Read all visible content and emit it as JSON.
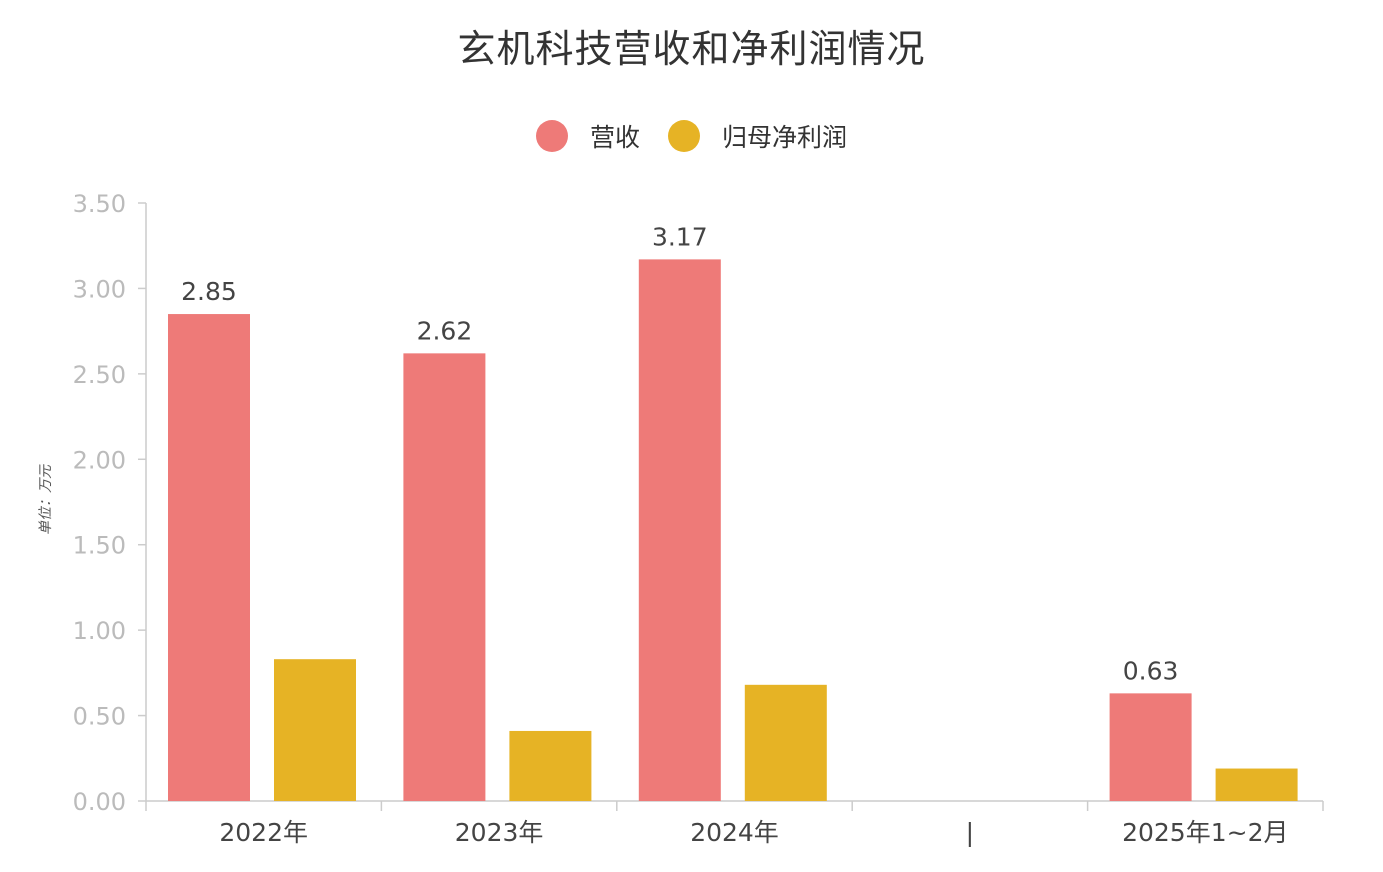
{
  "chart_data": {
    "type": "bar",
    "title": "玄机科技营收和净利润情况",
    "ylabel": "单位：万元",
    "xlabel": "",
    "ylim": [
      0,
      3.5
    ],
    "yticks": [
      "0.00",
      "0.50",
      "1.00",
      "1.50",
      "2.00",
      "2.50",
      "3.00",
      "3.50"
    ],
    "categories": [
      "2022年",
      "2023年",
      "2024年",
      "|",
      "2025年1~2月"
    ],
    "legend_position": "top-center",
    "grid": false,
    "series": [
      {
        "name": "营收",
        "color": "#ee7a78",
        "values": [
          2.85,
          2.62,
          3.17,
          null,
          0.63
        ],
        "labels": [
          "2.85",
          "2.62",
          "3.17",
          "",
          "0.63"
        ]
      },
      {
        "name": "归母净利润",
        "color": "#e6b325",
        "values": [
          0.83,
          0.41,
          0.68,
          null,
          0.19
        ],
        "labels": [
          "",
          "",
          "",
          "",
          ""
        ]
      }
    ]
  }
}
